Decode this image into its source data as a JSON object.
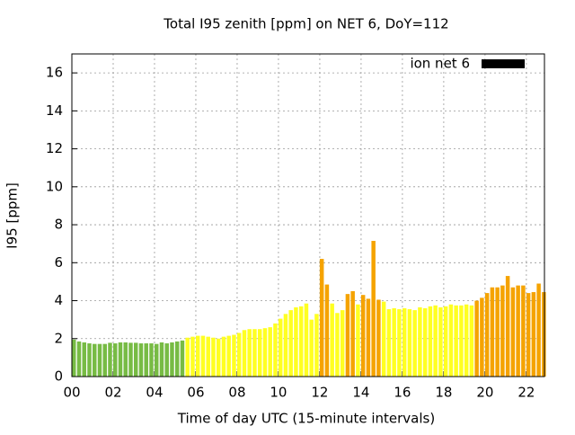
{
  "chart_data": {
    "type": "bar",
    "title": "Total I95 zenith [ppm] on NET 6, DoY=112",
    "x_label": "Time of day UTC (15-minute intervals)",
    "y_label": "I95 [ppm]",
    "x": [
      0,
      0.25,
      0.5,
      0.75,
      1,
      1.25,
      1.5,
      1.75,
      2,
      2.25,
      2.5,
      2.75,
      3,
      3.25,
      3.5,
      3.75,
      4,
      4.25,
      4.5,
      4.75,
      5,
      5.25,
      5.5,
      5.75,
      6,
      6.25,
      6.5,
      6.75,
      7,
      7.25,
      7.5,
      7.75,
      8,
      8.25,
      8.5,
      8.75,
      9,
      9.25,
      9.5,
      9.75,
      10,
      10.25,
      10.5,
      10.75,
      11,
      11.25,
      11.5,
      11.75,
      12,
      12.25,
      12.5,
      12.75,
      13,
      13.25,
      13.5,
      13.75,
      14,
      14.25,
      14.5,
      14.75,
      15,
      15.25,
      15.5,
      15.75,
      16,
      16.25,
      16.5,
      16.75,
      17,
      17.25,
      17.5,
      17.75,
      18,
      18.25,
      18.5,
      18.75,
      19,
      19.25,
      19.5,
      19.75,
      20,
      20.25,
      20.5,
      20.75,
      21,
      21.25,
      21.5,
      21.75,
      22,
      22.25,
      22.5,
      22.75
    ],
    "series": [
      {
        "name": "ion net 6",
        "color": "#000000",
        "values": [
          1.95,
          1.85,
          1.8,
          1.75,
          1.72,
          1.72,
          1.72,
          1.78,
          1.75,
          1.8,
          1.8,
          1.78,
          1.78,
          1.75,
          1.75,
          1.75,
          1.72,
          1.8,
          1.75,
          1.8,
          1.85,
          1.9,
          2.05,
          2.1,
          2.15,
          2.15,
          2.1,
          2.05,
          2.0,
          2.1,
          2.15,
          2.2,
          2.3,
          2.45,
          2.5,
          2.5,
          2.5,
          2.55,
          2.6,
          2.8,
          3.05,
          3.3,
          3.5,
          3.65,
          3.7,
          3.85,
          3.0,
          3.3,
          6.2,
          4.85,
          3.85,
          3.35,
          3.5,
          4.35,
          4.5,
          3.8,
          4.3,
          4.1,
          7.15,
          4.05,
          3.95,
          3.55,
          3.6,
          3.55,
          3.6,
          3.55,
          3.5,
          3.65,
          3.6,
          3.7,
          3.75,
          3.65,
          3.7,
          3.8,
          3.75,
          3.75,
          3.8,
          3.75,
          4.0,
          4.15,
          4.4,
          4.7,
          4.7,
          4.8,
          5.3,
          4.7,
          4.8,
          4.8,
          4.4,
          4.45,
          4.9,
          4.45
        ],
        "colors": [
          "#77bb44",
          "#77bb44",
          "#77bb44",
          "#77bb44",
          "#77bb44",
          "#77bb44",
          "#77bb44",
          "#77bb44",
          "#77bb44",
          "#77bb44",
          "#77bb44",
          "#77bb44",
          "#77bb44",
          "#77bb44",
          "#77bb44",
          "#77bb44",
          "#77bb44",
          "#77bb44",
          "#77bb44",
          "#77bb44",
          "#77bb44",
          "#77bb44",
          "#ffff22",
          "#ffff22",
          "#ffff22",
          "#ffff22",
          "#ffff22",
          "#ffff22",
          "#ffff22",
          "#ffff22",
          "#ffff22",
          "#ffff22",
          "#ffff22",
          "#ffff22",
          "#ffff22",
          "#ffff22",
          "#ffff22",
          "#ffff22",
          "#ffff22",
          "#ffff22",
          "#ffff22",
          "#ffff22",
          "#ffff22",
          "#ffff22",
          "#ffff22",
          "#ffff22",
          "#ffff22",
          "#ffff22",
          "#f5a300",
          "#f5a300",
          "#ffff22",
          "#ffff22",
          "#ffff22",
          "#f5a300",
          "#f5a300",
          "#ffff22",
          "#f5a300",
          "#f5a300",
          "#f5a300",
          "#f5a300",
          "#ffff22",
          "#ffff22",
          "#ffff22",
          "#ffff22",
          "#ffff22",
          "#ffff22",
          "#ffff22",
          "#ffff22",
          "#ffff22",
          "#ffff22",
          "#ffff22",
          "#ffff22",
          "#ffff22",
          "#ffff22",
          "#ffff22",
          "#ffff22",
          "#ffff22",
          "#ffff22",
          "#f5a300",
          "#f5a300",
          "#f5a300",
          "#f5a300",
          "#f5a300",
          "#f5a300",
          "#f5a300",
          "#f5a300",
          "#f5a300",
          "#f5a300",
          "#f5a300",
          "#f5a300",
          "#f5a300",
          "#f5a300"
        ]
      }
    ],
    "xlim": [
      0,
      22.875
    ],
    "xticks": [
      {
        "value": 0,
        "label": "00"
      },
      {
        "value": 2,
        "label": "02"
      },
      {
        "value": 4,
        "label": "04"
      },
      {
        "value": 6,
        "label": "06"
      },
      {
        "value": 8,
        "label": "08"
      },
      10,
      12,
      14,
      16,
      18,
      20,
      22
    ],
    "ylim": [
      0,
      17
    ],
    "yticks": [
      0,
      2,
      4,
      6,
      8,
      10,
      12,
      14,
      16
    ],
    "grid": true,
    "legend": "top-right"
  }
}
